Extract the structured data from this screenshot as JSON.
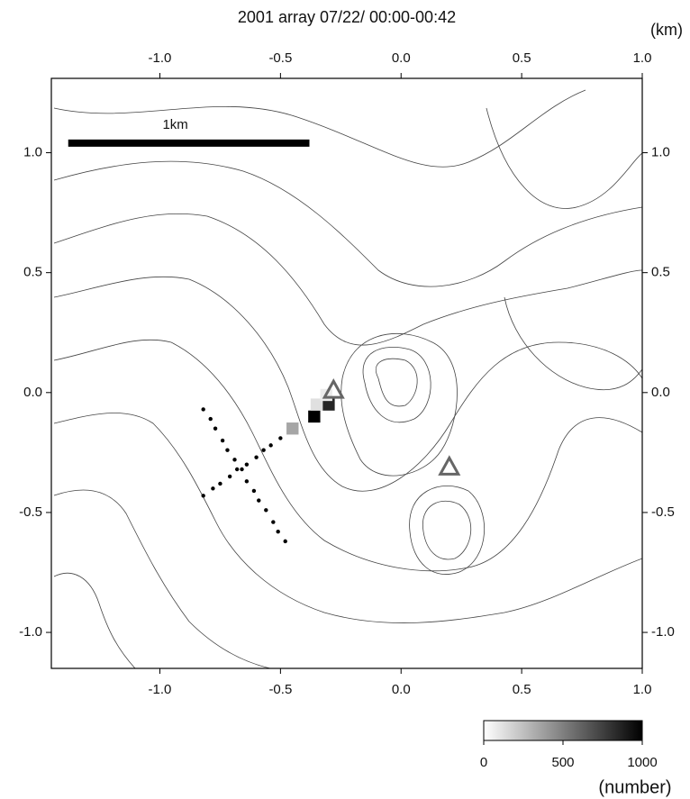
{
  "chart_data": {
    "type": "map",
    "title": "2001 array 07/22/ 00:00-00:42",
    "unit_label": "(km)",
    "xlim": [
      -1.45,
      1.0
    ],
    "ylim": [
      -1.15,
      1.31
    ],
    "xticks": [
      {
        "value": -1.0,
        "label": "-1.0"
      },
      {
        "value": -0.5,
        "label": "-0.5"
      },
      {
        "value": 0,
        "label": "0.0"
      },
      {
        "value": 0.5,
        "label": "0.5"
      },
      {
        "value": 1.0,
        "label": "1.0"
      }
    ],
    "yticks": [
      {
        "value": 1.0,
        "label": "1.0"
      },
      {
        "value": 0.5,
        "label": "0.5"
      },
      {
        "value": 0,
        "label": "0.0"
      },
      {
        "value": -0.5,
        "label": "-0.5"
      },
      {
        "value": -1.0,
        "label": "-1.0"
      }
    ],
    "scale_bar": {
      "label": "1km",
      "x": [
        -1.38,
        -0.38
      ],
      "y": 1.04
    },
    "stations": {
      "x": [
        -0.82,
        -0.79,
        -0.77,
        -0.74,
        -0.72,
        -0.69,
        -0.66,
        -0.64,
        -0.61,
        -0.59,
        -0.56,
        -0.53,
        -0.51,
        -0.48,
        -0.82,
        -0.78,
        -0.75,
        -0.71,
        -0.68,
        -0.64,
        -0.6,
        -0.57,
        -0.54,
        -0.5
      ],
      "y": [
        -0.07,
        -0.11,
        -0.15,
        -0.2,
        -0.24,
        -0.28,
        -0.32,
        -0.37,
        -0.41,
        -0.45,
        -0.49,
        -0.54,
        -0.58,
        -0.62,
        -0.43,
        -0.4,
        -0.38,
        -0.35,
        -0.32,
        -0.3,
        -0.27,
        -0.24,
        -0.22,
        -0.19
      ]
    },
    "vents": {
      "x": [
        -0.28,
        0.2
      ],
      "y": [
        0.01,
        -0.31
      ],
      "color": "#666666"
    },
    "cells": {
      "size": 0.05,
      "x": [
        -0.45,
        -0.36,
        -0.3,
        -0.35,
        -0.31
      ],
      "y": [
        -0.15,
        -0.1,
        -0.05,
        -0.05,
        -0.01
      ],
      "values": [
        350,
        1000,
        850,
        120,
        80
      ]
    },
    "colorbar": {
      "clim": [
        0,
        1000
      ],
      "ticks": [
        0,
        500,
        1000
      ],
      "label": "(number)"
    }
  }
}
